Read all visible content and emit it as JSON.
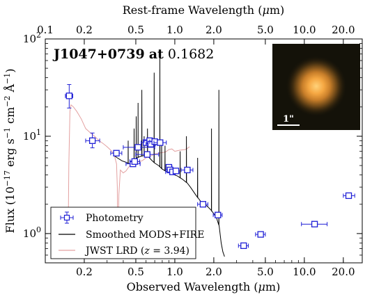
{
  "chart_data": {
    "type": "scatter",
    "title_object": "J1047+0739",
    "title_at": "at",
    "title_redshift": "0.1682",
    "xlabel": "Observed Wavelength (μm)",
    "xlabel_top": "Rest-frame Wavelength (μm)",
    "ylabel": "Flux (10⁻¹⁷ erg s⁻¹ cm⁻² Å⁻¹)",
    "xscale": "log",
    "yscale": "log",
    "xlim": [
      0.1,
      28
    ],
    "ylim": [
      0.5,
      100
    ],
    "x_ticks_bottom": [
      {
        "value": 0.2,
        "label": "0.2"
      },
      {
        "value": 0.5,
        "label": "0.5"
      },
      {
        "value": 1.0,
        "label": "1.0"
      },
      {
        "value": 2.0,
        "label": "2.0"
      },
      {
        "value": 5.0,
        "label": "5.0"
      },
      {
        "value": 10.0,
        "label": "10.0"
      },
      {
        "value": 20.0,
        "label": "20.0"
      }
    ],
    "x_ticks_top": [
      {
        "value": 0.1,
        "label": "0.1"
      },
      {
        "value": 0.2,
        "label": "0.2"
      },
      {
        "value": 0.5,
        "label": "0.5"
      },
      {
        "value": 1.0,
        "label": "1.0"
      },
      {
        "value": 2.0,
        "label": "2.0"
      },
      {
        "value": 5.0,
        "label": "5.0"
      },
      {
        "value": 10.0,
        "label": "10.0"
      },
      {
        "value": 20.0,
        "label": "20.0"
      }
    ],
    "y_ticks": [
      {
        "value": 1,
        "base": "10",
        "exp": "0"
      },
      {
        "value": 10,
        "base": "10",
        "exp": "1"
      },
      {
        "value": 100,
        "base": "10",
        "exp": "2"
      }
    ],
    "legend": {
      "location": "lower-left",
      "entries": [
        {
          "label": "Photometry",
          "style": "marker",
          "color": "#1f1fd6"
        },
        {
          "label": "Smoothed MODS+FIRE",
          "style": "line",
          "color": "#000000"
        },
        {
          "label_prefix": "JWST LRD (",
          "label_var": "z",
          "label_suffix": " = 3.94)",
          "style": "line",
          "color": "#e3a0a0"
        }
      ]
    },
    "inset": {
      "scalebar_label": "1\"",
      "location": "top-right"
    },
    "photometry": {
      "color": "#1f1fd6",
      "points": [
        {
          "x": 0.153,
          "y": 26.0,
          "xerr": [
            0.143,
            0.163
          ],
          "yerr": [
            19.5,
            34.0
          ]
        },
        {
          "x": 0.231,
          "y": 9.0,
          "xerr": [
            0.205,
            0.263
          ],
          "yerr": [
            7.6,
            10.8
          ]
        },
        {
          "x": 0.354,
          "y": 6.7,
          "xerr": [
            0.32,
            0.39
          ],
          "yerr": [
            6.3,
            7.1
          ]
        },
        {
          "x": 0.475,
          "y": 5.2,
          "xerr": [
            0.42,
            0.54
          ],
          "yerr": [
            4.9,
            5.5
          ]
        },
        {
          "x": 0.49,
          "y": 5.5,
          "xerr": [
            0.45,
            0.535
          ],
          "yerr": [
            5.2,
            5.8
          ]
        },
        {
          "x": 0.52,
          "y": 7.7,
          "xerr": [
            0.4,
            0.7
          ],
          "yerr": [
            7.3,
            8.1
          ]
        },
        {
          "x": 0.6,
          "y": 8.6,
          "xerr": [
            0.55,
            0.66
          ],
          "yerr": [
            8.2,
            9.0
          ]
        },
        {
          "x": 0.612,
          "y": 6.5,
          "xerr": [
            0.5,
            0.75
          ],
          "yerr": [
            6.2,
            6.8
          ]
        },
        {
          "x": 0.64,
          "y": 9.0,
          "xerr": [
            0.58,
            0.7
          ],
          "yerr": [
            8.6,
            9.4
          ]
        },
        {
          "x": 0.653,
          "y": 8.3,
          "xerr": [
            0.6,
            0.71
          ],
          "yerr": [
            7.9,
            8.7
          ]
        },
        {
          "x": 0.7,
          "y": 8.8,
          "xerr": [
            0.64,
            0.78
          ],
          "yerr": [
            8.4,
            9.2
          ]
        },
        {
          "x": 0.77,
          "y": 8.6,
          "xerr": [
            0.69,
            0.86
          ],
          "yerr": [
            8.2,
            9.0
          ]
        },
        {
          "x": 0.9,
          "y": 4.8,
          "xerr": [
            0.86,
            0.95
          ],
          "yerr": [
            4.6,
            5.0
          ]
        },
        {
          "x": 0.92,
          "y": 4.5,
          "xerr": [
            0.88,
            0.97
          ],
          "yerr": [
            4.3,
            4.7
          ]
        },
        {
          "x": 0.96,
          "y": 4.3,
          "xerr": [
            0.85,
            1.08
          ],
          "yerr": [
            4.1,
            4.5
          ]
        },
        {
          "x": 1.02,
          "y": 4.4,
          "xerr": [
            0.97,
            1.07
          ],
          "yerr": [
            4.2,
            4.6
          ]
        },
        {
          "x": 1.25,
          "y": 4.5,
          "xerr": [
            1.12,
            1.38
          ],
          "yerr": [
            4.3,
            4.7
          ]
        },
        {
          "x": 1.65,
          "y": 2.0,
          "xerr": [
            1.5,
            1.8
          ],
          "yerr": [
            1.9,
            2.1
          ]
        },
        {
          "x": 2.15,
          "y": 1.55,
          "xerr": [
            1.98,
            2.32
          ],
          "yerr": [
            1.48,
            1.62
          ]
        },
        {
          "x": 3.4,
          "y": 0.75,
          "xerr": [
            3.1,
            3.7
          ],
          "yerr": [
            0.72,
            0.78
          ]
        },
        {
          "x": 4.6,
          "y": 0.98,
          "xerr": [
            4.2,
            5.0
          ],
          "yerr": [
            0.95,
            1.01
          ]
        },
        {
          "x": 12.0,
          "y": 1.25,
          "xerr": [
            9.5,
            15.0
          ],
          "yerr": [
            1.21,
            1.29
          ]
        },
        {
          "x": 22.0,
          "y": 2.45,
          "xerr": [
            20.0,
            24.5
          ],
          "yerr": [
            2.38,
            2.52
          ]
        }
      ]
    },
    "mods_fire_spectrum": {
      "color": "#000000",
      "continuum": [
        [
          0.335,
          6.4
        ],
        [
          0.36,
          6.0
        ],
        [
          0.39,
          5.6
        ],
        [
          0.42,
          5.4
        ],
        [
          0.45,
          5.2
        ],
        [
          0.48,
          5.6
        ],
        [
          0.51,
          6.0
        ],
        [
          0.54,
          6.2
        ],
        [
          0.57,
          6.3
        ],
        [
          0.6,
          6.4
        ],
        [
          0.63,
          6.1
        ],
        [
          0.66,
          5.7
        ],
        [
          0.7,
          5.3
        ],
        [
          0.75,
          5.0
        ],
        [
          0.8,
          4.6
        ],
        [
          0.87,
          4.3
        ],
        [
          0.95,
          4.1
        ],
        [
          1.05,
          3.9
        ],
        [
          1.15,
          3.6
        ],
        [
          1.25,
          3.3
        ],
        [
          1.32,
          3.0
        ],
        [
          1.45,
          2.5
        ],
        [
          1.6,
          2.1
        ],
        [
          1.75,
          1.95
        ],
        [
          1.9,
          1.75
        ],
        [
          2.0,
          1.6
        ],
        [
          2.1,
          1.45
        ],
        [
          2.2,
          1.2
        ],
        [
          2.28,
          0.8
        ],
        [
          2.35,
          0.65
        ],
        [
          2.42,
          0.58
        ]
      ],
      "emission_lines": [
        {
          "x": 0.4365,
          "peak": 9.0
        },
        {
          "x": 0.485,
          "peak": 12.0
        },
        {
          "x": 0.5035,
          "peak": 16.0
        },
        {
          "x": 0.5205,
          "peak": 22.0
        },
        {
          "x": 0.5568,
          "peak": 30.0
        },
        {
          "x": 0.5795,
          "peak": 10.0
        },
        {
          "x": 0.6155,
          "peak": 12.0
        },
        {
          "x": 0.6925,
          "peak": 45.0
        },
        {
          "x": 0.7667,
          "peak": 70.0
        },
        {
          "x": 0.7915,
          "peak": 9.0
        },
        {
          "x": 0.84,
          "peak": 8.0
        },
        {
          "x": 1.1,
          "peak": 7.0
        },
        {
          "x": 1.23,
          "peak": 10.0
        },
        {
          "x": 1.5,
          "peak": 6.0
        },
        {
          "x": 1.92,
          "peak": 12.0
        },
        {
          "x": 2.19,
          "peak": 30.0
        }
      ]
    },
    "jwst_lrd_spectrum": {
      "color": "#e3a0a0",
      "points": [
        [
          0.15,
          0.7
        ],
        [
          0.152,
          5.0
        ],
        [
          0.155,
          18.0
        ],
        [
          0.158,
          21.0
        ],
        [
          0.165,
          20.0
        ],
        [
          0.175,
          18.0
        ],
        [
          0.19,
          15.0
        ],
        [
          0.205,
          12.0
        ],
        [
          0.22,
          11.0
        ],
        [
          0.24,
          10.0
        ],
        [
          0.26,
          9.0
        ],
        [
          0.28,
          8.4
        ],
        [
          0.3,
          7.8
        ],
        [
          0.32,
          7.2
        ],
        [
          0.34,
          6.5
        ],
        [
          0.355,
          5.2
        ],
        [
          0.36,
          3.0
        ],
        [
          0.363,
          0.6
        ],
        [
          0.37,
          2.5
        ],
        [
          0.38,
          4.5
        ],
        [
          0.4,
          4.2
        ],
        [
          0.42,
          4.4
        ],
        [
          0.44,
          4.8
        ],
        [
          0.47,
          5.4
        ],
        [
          0.5,
          5.3
        ],
        [
          0.53,
          5.5
        ],
        [
          0.56,
          5.6
        ],
        [
          0.6,
          6.0
        ],
        [
          0.63,
          6.2
        ],
        [
          0.66,
          6.3
        ],
        [
          0.7,
          6.6
        ],
        [
          0.75,
          6.7
        ],
        [
          0.8,
          6.8
        ],
        [
          0.85,
          6.9
        ],
        [
          0.9,
          7.3
        ],
        [
          0.95,
          7.4
        ],
        [
          1.0,
          7.0
        ],
        [
          1.1,
          7.2
        ],
        [
          1.2,
          7.3
        ],
        [
          1.25,
          7.5
        ],
        [
          1.3,
          7.8
        ]
      ]
    }
  }
}
